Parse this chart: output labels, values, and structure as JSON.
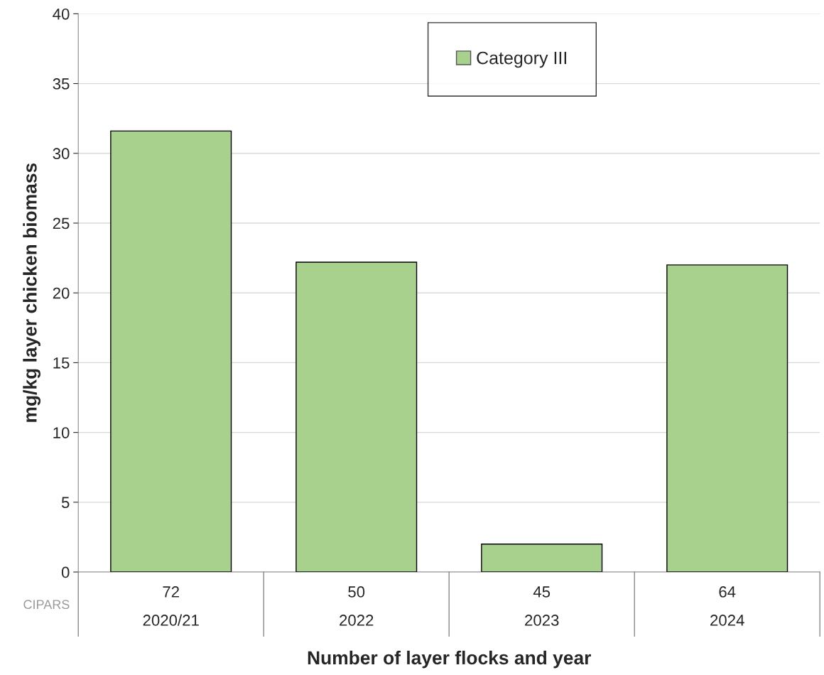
{
  "chart_data": {
    "type": "bar",
    "xlabel": "Number of layer flocks and year",
    "ylabel": "mg/kg layer chicken biomass",
    "categories": [
      "72\n2020/21",
      "50\n2022",
      "45\n2023",
      "64\n2024"
    ],
    "series": [
      {
        "name": "Category III",
        "color": "#a9d18e",
        "values": [
          31.6,
          22.2,
          2.0,
          22.0
        ]
      }
    ],
    "ylim": [
      0,
      40
    ],
    "yticks": [
      0,
      5,
      10,
      15,
      20,
      25,
      30,
      35,
      40
    ],
    "grid": "y",
    "legend": "top",
    "annotations": [
      "CIPARS"
    ]
  }
}
